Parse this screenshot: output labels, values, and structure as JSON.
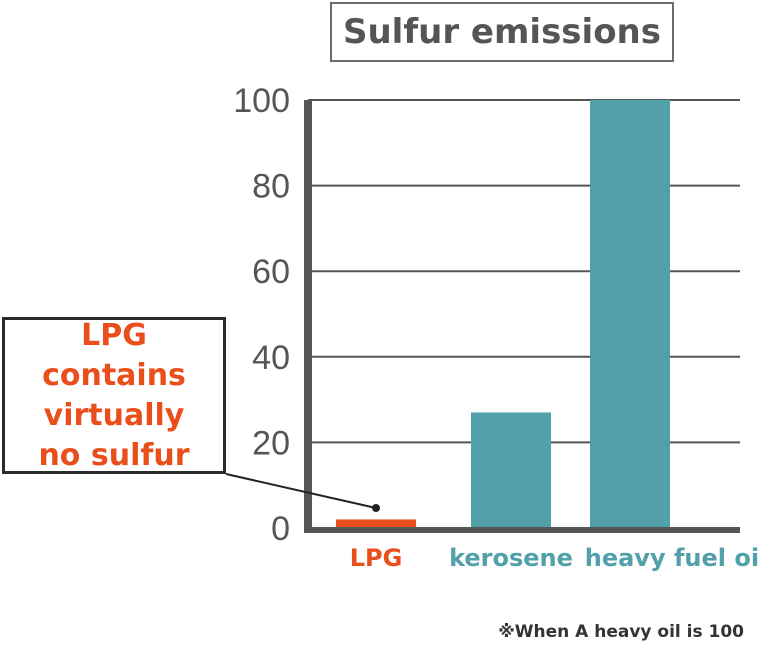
{
  "chart_data": {
    "type": "bar",
    "title": "Sulfur emissions",
    "categories": [
      "LPG",
      "kerosene",
      "heavy fuel oil"
    ],
    "values": [
      2,
      27,
      100
    ],
    "ylim": [
      0,
      100
    ],
    "yticks": [
      "0",
      "20",
      "40",
      "60",
      "80",
      "100"
    ],
    "grid": true,
    "colors": [
      "#e94e1b",
      "#51a0aa",
      "#51a0aa"
    ],
    "annotation": {
      "lines": [
        "LPG contains",
        "virtually",
        "no sulfur"
      ],
      "target": "LPG",
      "color": "#e94e1b"
    },
    "footnote": "※When A heavy oil is 100"
  }
}
